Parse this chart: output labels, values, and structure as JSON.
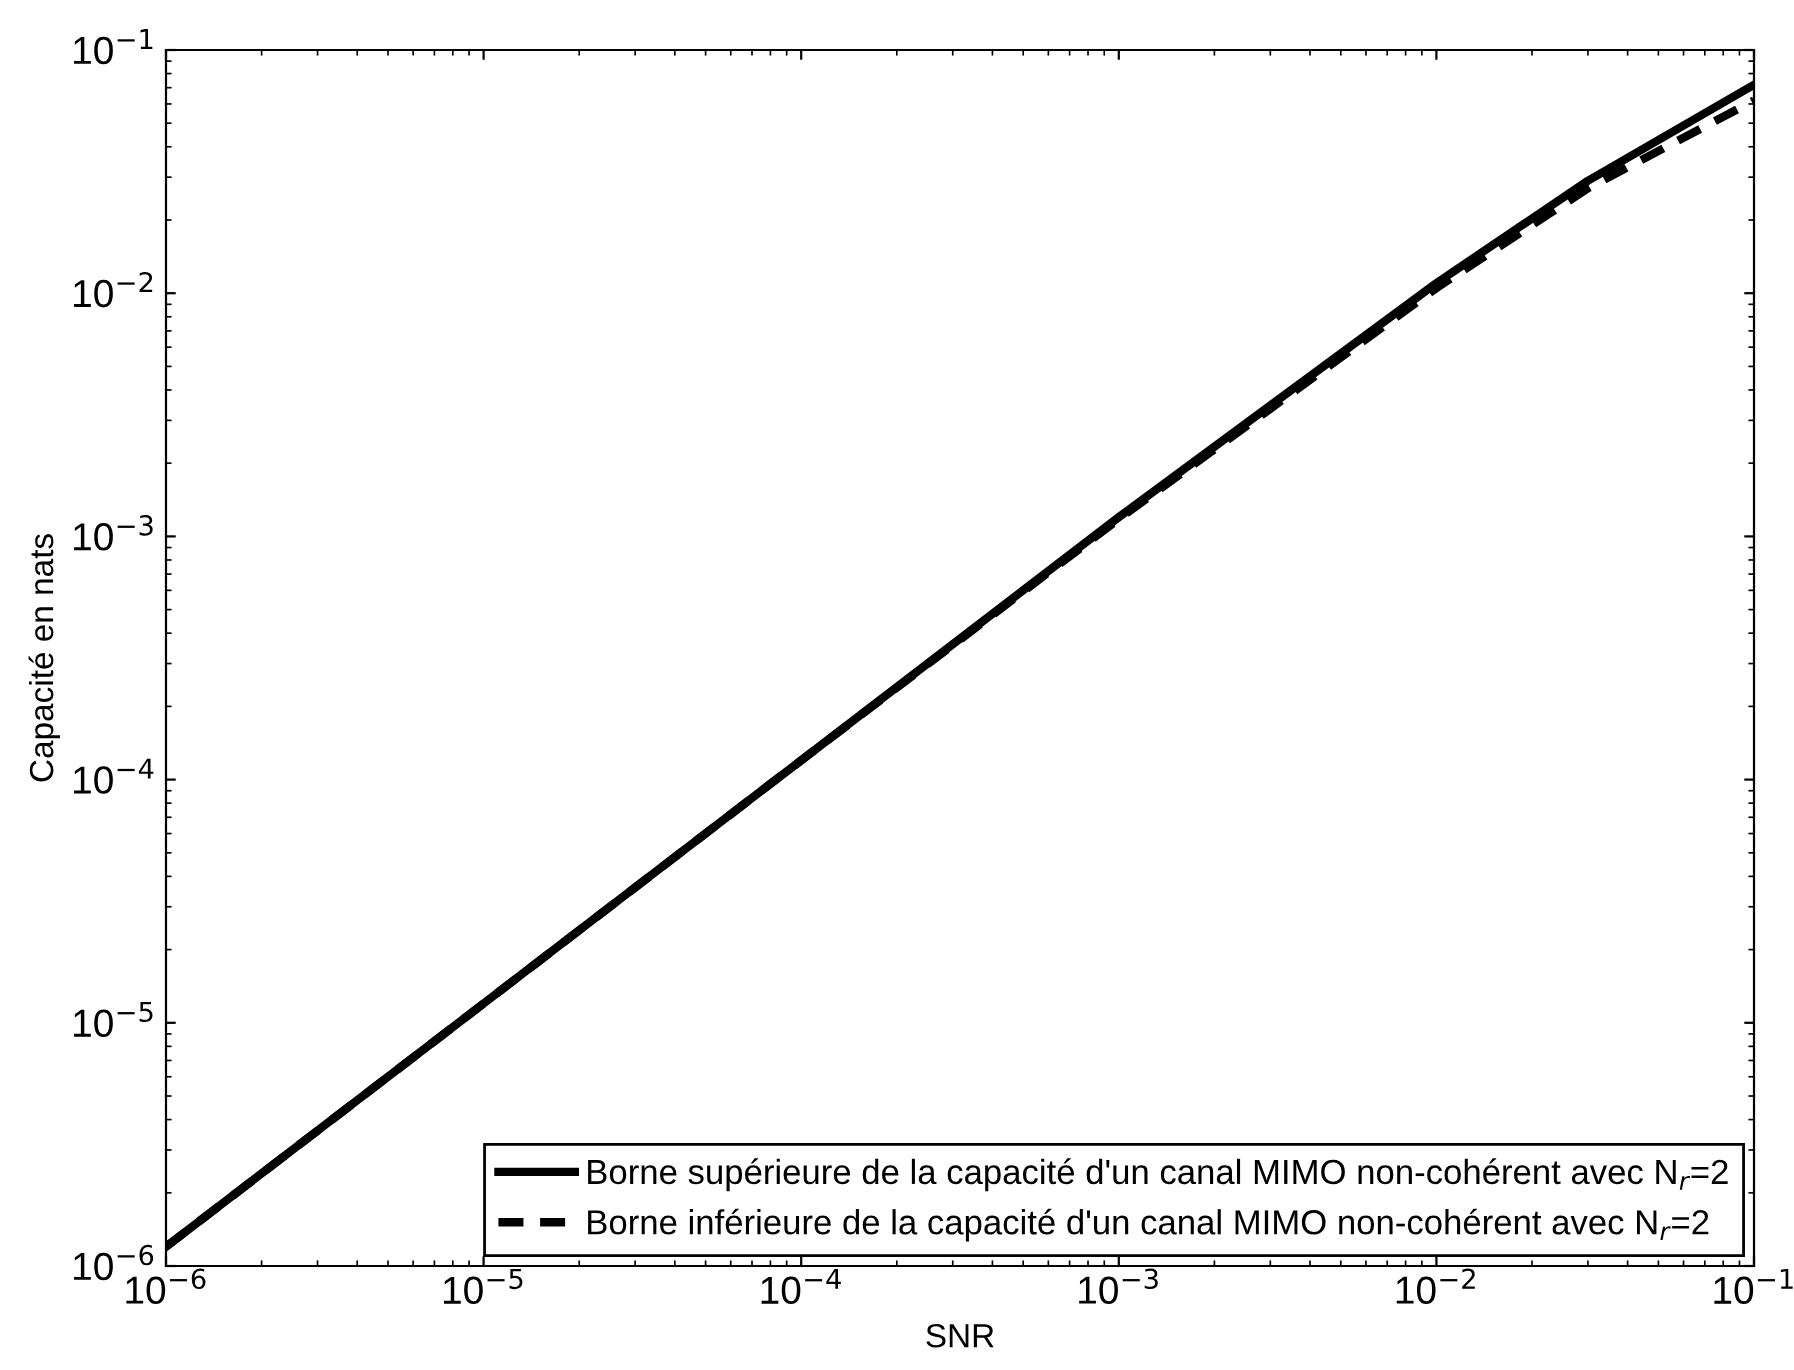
{
  "chart_data": {
    "type": "line",
    "xlabel": "SNR",
    "ylabel": "Capacité en nats",
    "log": "xy",
    "x": [
      1e-06,
      1e-05,
      0.0001,
      0.001,
      0.01,
      0.03,
      0.1
    ],
    "series": [
      {
        "name": "Borne supérieure de la capacité d'un canal MIMO non-cohérent avec N$_{r}$=2",
        "color": "#000000",
        "line_style": "solid",
        "values": [
          1.2e-06,
          1.2e-05,
          0.00012,
          0.0012,
          0.011,
          0.029,
          0.072
        ]
      },
      {
        "name": "Borne inférieure de la capacité d'un canal MIMO non-cohérent avec N$_{r}$=2",
        "color": "#000000",
        "line_style": "dashed",
        "values": [
          1.2e-06,
          1.2e-05,
          0.00012,
          0.00118,
          0.0105,
          0.027,
          0.062
        ]
      }
    ],
    "xlim": [
      1e-06,
      0.1
    ],
    "ylim": [
      1e-06,
      0.1
    ],
    "xticks": [
      {
        "value": 1e-06,
        "label": "10$^{−6}$"
      },
      {
        "value": 1e-05,
        "label": "10$^{−5}$"
      },
      {
        "value": 0.0001,
        "label": "10$^{−4}$"
      },
      {
        "value": 0.001,
        "label": "10$^{−3}$"
      },
      {
        "value": 0.01,
        "label": "10$^{−2}$"
      },
      {
        "value": 0.1,
        "label": "10$^{−1}$"
      }
    ],
    "yticks": [
      {
        "value": 1e-06,
        "label": "10$^{−6}$"
      },
      {
        "value": 1e-05,
        "label": "10$^{−5}$"
      },
      {
        "value": 0.0001,
        "label": "10$^{−4}$"
      },
      {
        "value": 0.001,
        "label": "10$^{−3}$"
      },
      {
        "value": 0.01,
        "label": "10$^{−2}$"
      },
      {
        "value": 0.1,
        "label": "10$^{−1}$"
      }
    ],
    "grid": false,
    "legend": "bottom right"
  }
}
